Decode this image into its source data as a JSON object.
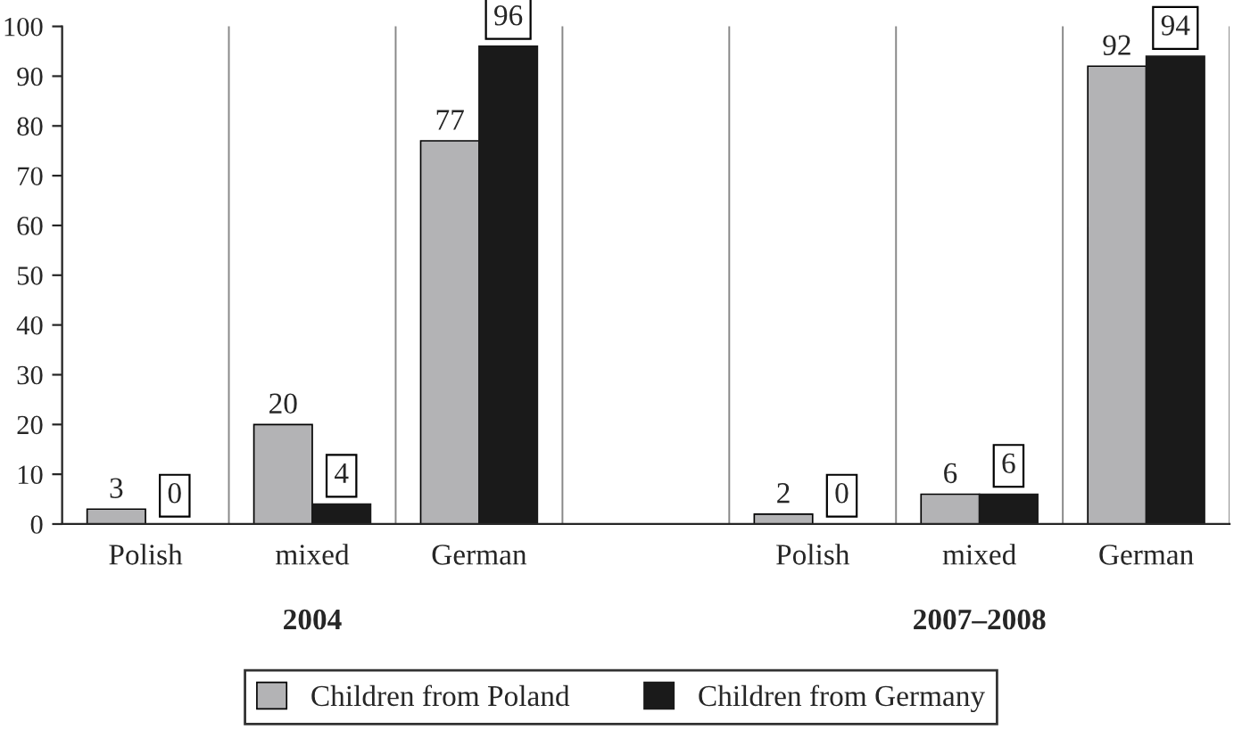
{
  "chart_data": {
    "type": "bar",
    "categories": [
      "Polish",
      "mixed",
      "German",
      null,
      "Polish",
      "mixed",
      "German"
    ],
    "series": [
      {
        "name": "Children from Poland",
        "color": "#b3b3b5",
        "values": [
          3,
          20,
          77,
          null,
          2,
          6,
          92
        ]
      },
      {
        "name": "Children from Germany",
        "color": "#1a1a1a",
        "values": [
          0,
          4,
          96,
          null,
          0,
          6,
          94
        ]
      }
    ],
    "annotations": [
      "2004",
      "2007–2008"
    ],
    "ylim": [
      0,
      100
    ],
    "yticks": [
      0,
      10,
      20,
      30,
      40,
      50,
      60,
      70,
      80,
      90,
      100
    ],
    "grid": "x",
    "legend": "bottom",
    "data_labels": true
  }
}
